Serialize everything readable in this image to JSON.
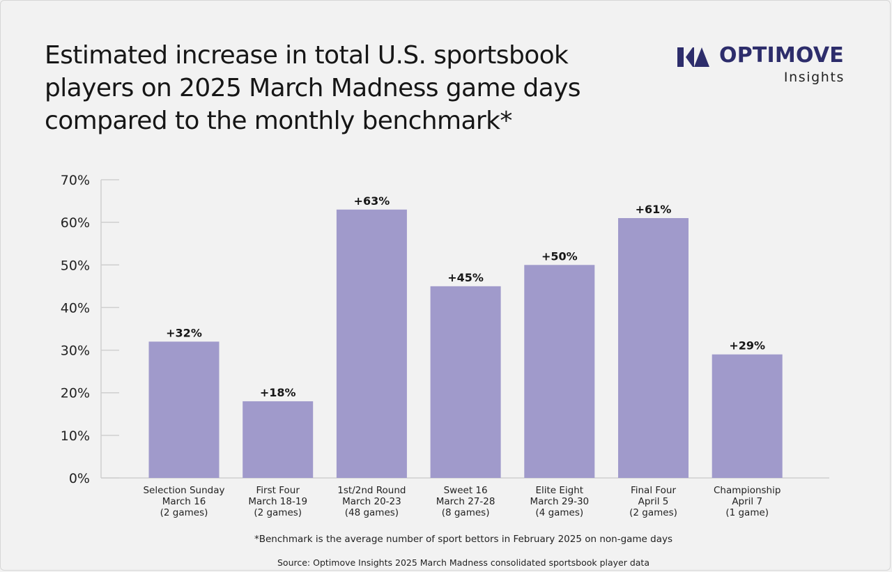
{
  "header": {
    "title_lines": [
      "Estimated increase in total U.S. sportsbook",
      "players on 2025 March Madness game days",
      "compared to the monthly benchmark*"
    ]
  },
  "logo": {
    "brand": "OPTIMOVE",
    "sub": "Insights",
    "brand_color": "#2d2d6b"
  },
  "chart_data": {
    "type": "bar",
    "title": "Estimated increase in total U.S. sportsbook players on 2025 March Madness game days compared to the monthly benchmark*",
    "xlabel": "",
    "ylabel": "",
    "ylim": [
      0,
      70
    ],
    "yticks": [
      0,
      10,
      20,
      30,
      40,
      50,
      60,
      70
    ],
    "ytick_suffix": "%",
    "grid": false,
    "bar_color": "#a09acb",
    "categories": [
      [
        "Selection Sunday",
        "March 16",
        "(2 games)"
      ],
      [
        "First Four",
        "March 18-19",
        "(2 games)"
      ],
      [
        "1st/2nd Round",
        "March 20-23",
        "(48 games)"
      ],
      [
        "Sweet 16",
        "March 27-28",
        "(8 games)"
      ],
      [
        "Elite Eight",
        "March 29-30",
        "(4 games)"
      ],
      [
        "Final Four",
        "April 5",
        "(2 games)"
      ],
      [
        "Championship",
        "April 7",
        "(1 game)"
      ]
    ],
    "values": [
      32,
      18,
      63,
      45,
      50,
      61,
      29
    ],
    "data_labels": [
      "+32%",
      "+18%",
      "+63%",
      "+45%",
      "+50%",
      "+61%",
      "+29%"
    ]
  },
  "footnotes": {
    "benchmark": "*Benchmark is the average number of sport bettors in February 2025 on non-game days",
    "source": "Source: Optimove Insights 2025 March Madness consolidated sportsbook player data"
  }
}
